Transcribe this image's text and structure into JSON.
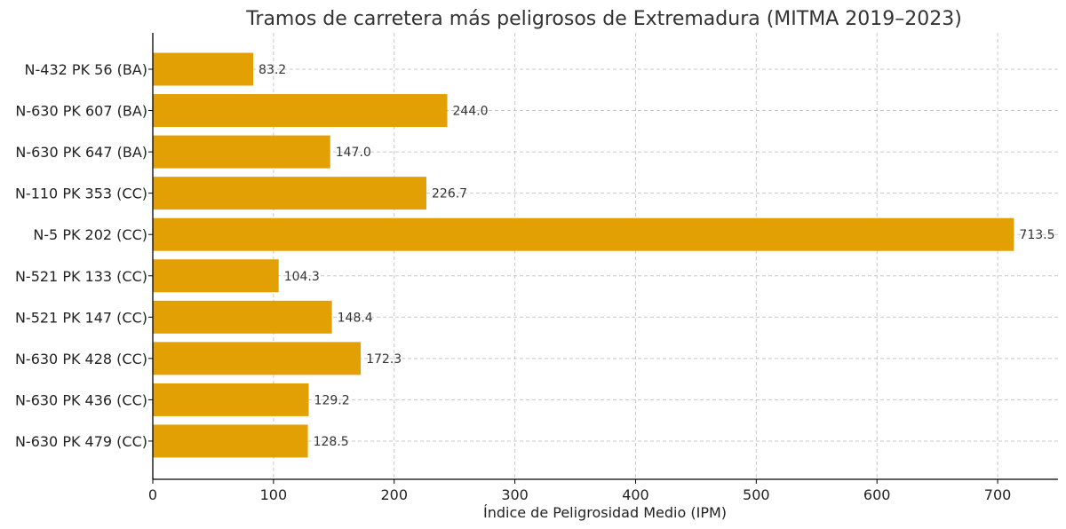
{
  "chart_data": {
    "type": "bar",
    "orientation": "horizontal",
    "title": "Tramos de carretera más peligrosos de Extremadura (MITMA 2019–2023)",
    "xlabel": "Índice de Peligrosidad Medio (IPM)",
    "ylabel": "",
    "categories": [
      "N-432 PK 56 (BA)",
      "N-630 PK 607 (BA)",
      "N-630 PK 647 (BA)",
      "N-110 PK 353 (CC)",
      "N-5 PK 202 (CC)",
      "N-521 PK 133 (CC)",
      "N-521 PK 147 (CC)",
      "N-630 PK 428 (CC)",
      "N-630 PK 436 (CC)",
      "N-630 PK 479 (CC)"
    ],
    "values": [
      83.2,
      244.0,
      147.0,
      226.7,
      713.5,
      104.3,
      148.4,
      172.3,
      129.2,
      128.5
    ],
    "data_labels": [
      "83.2",
      "244.0",
      "147.0",
      "226.7",
      "713.5",
      "104.3",
      "148.4",
      "172.3",
      "129.2",
      "128.5"
    ],
    "xlim": [
      0,
      750
    ],
    "xticks": [
      0,
      100,
      200,
      300,
      400,
      500,
      600,
      700
    ],
    "grid": true,
    "bar_color": "#E3A004"
  }
}
